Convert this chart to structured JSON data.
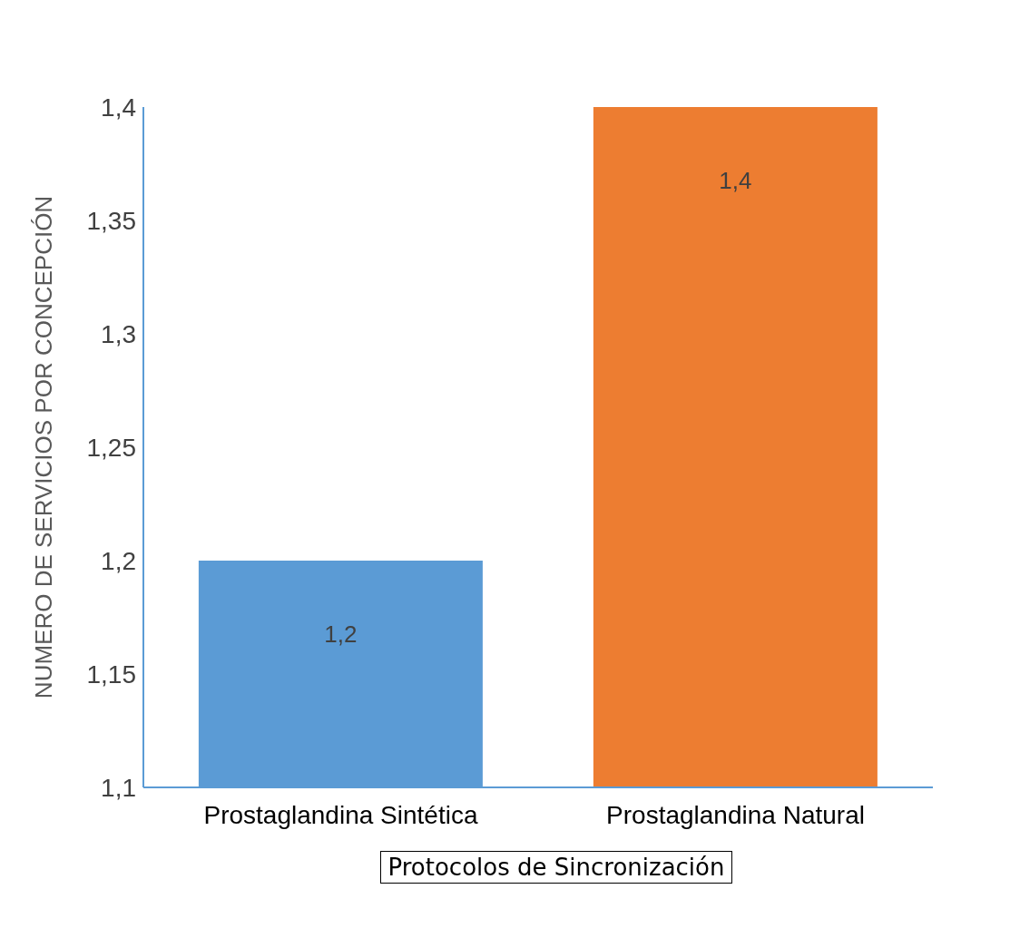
{
  "chart_data": {
    "type": "bar",
    "categories": [
      "Prostaglandina Sintética",
      "Prostaglandina Natural"
    ],
    "values": [
      1.2,
      1.4
    ],
    "colors": [
      "#5b9bd5",
      "#ed7d31"
    ],
    "value_labels": [
      "1,2",
      "1,4"
    ],
    "ylim": [
      1.1,
      1.4
    ],
    "yticks": [
      {
        "value": 1.1,
        "label": "1,1"
      },
      {
        "value": 1.15,
        "label": "1,15"
      },
      {
        "value": 1.2,
        "label": "1,2"
      },
      {
        "value": 1.25,
        "label": "1,25"
      },
      {
        "value": 1.3,
        "label": "1,3"
      },
      {
        "value": 1.35,
        "label": "1,35"
      },
      {
        "value": 1.4,
        "label": "1,4"
      }
    ],
    "xlabel": "Protocolos de Sincronización",
    "ylabel": "NUMERO DE SERVICIOS POR CONCEPCIÓN",
    "grid": false,
    "legend": false
  }
}
